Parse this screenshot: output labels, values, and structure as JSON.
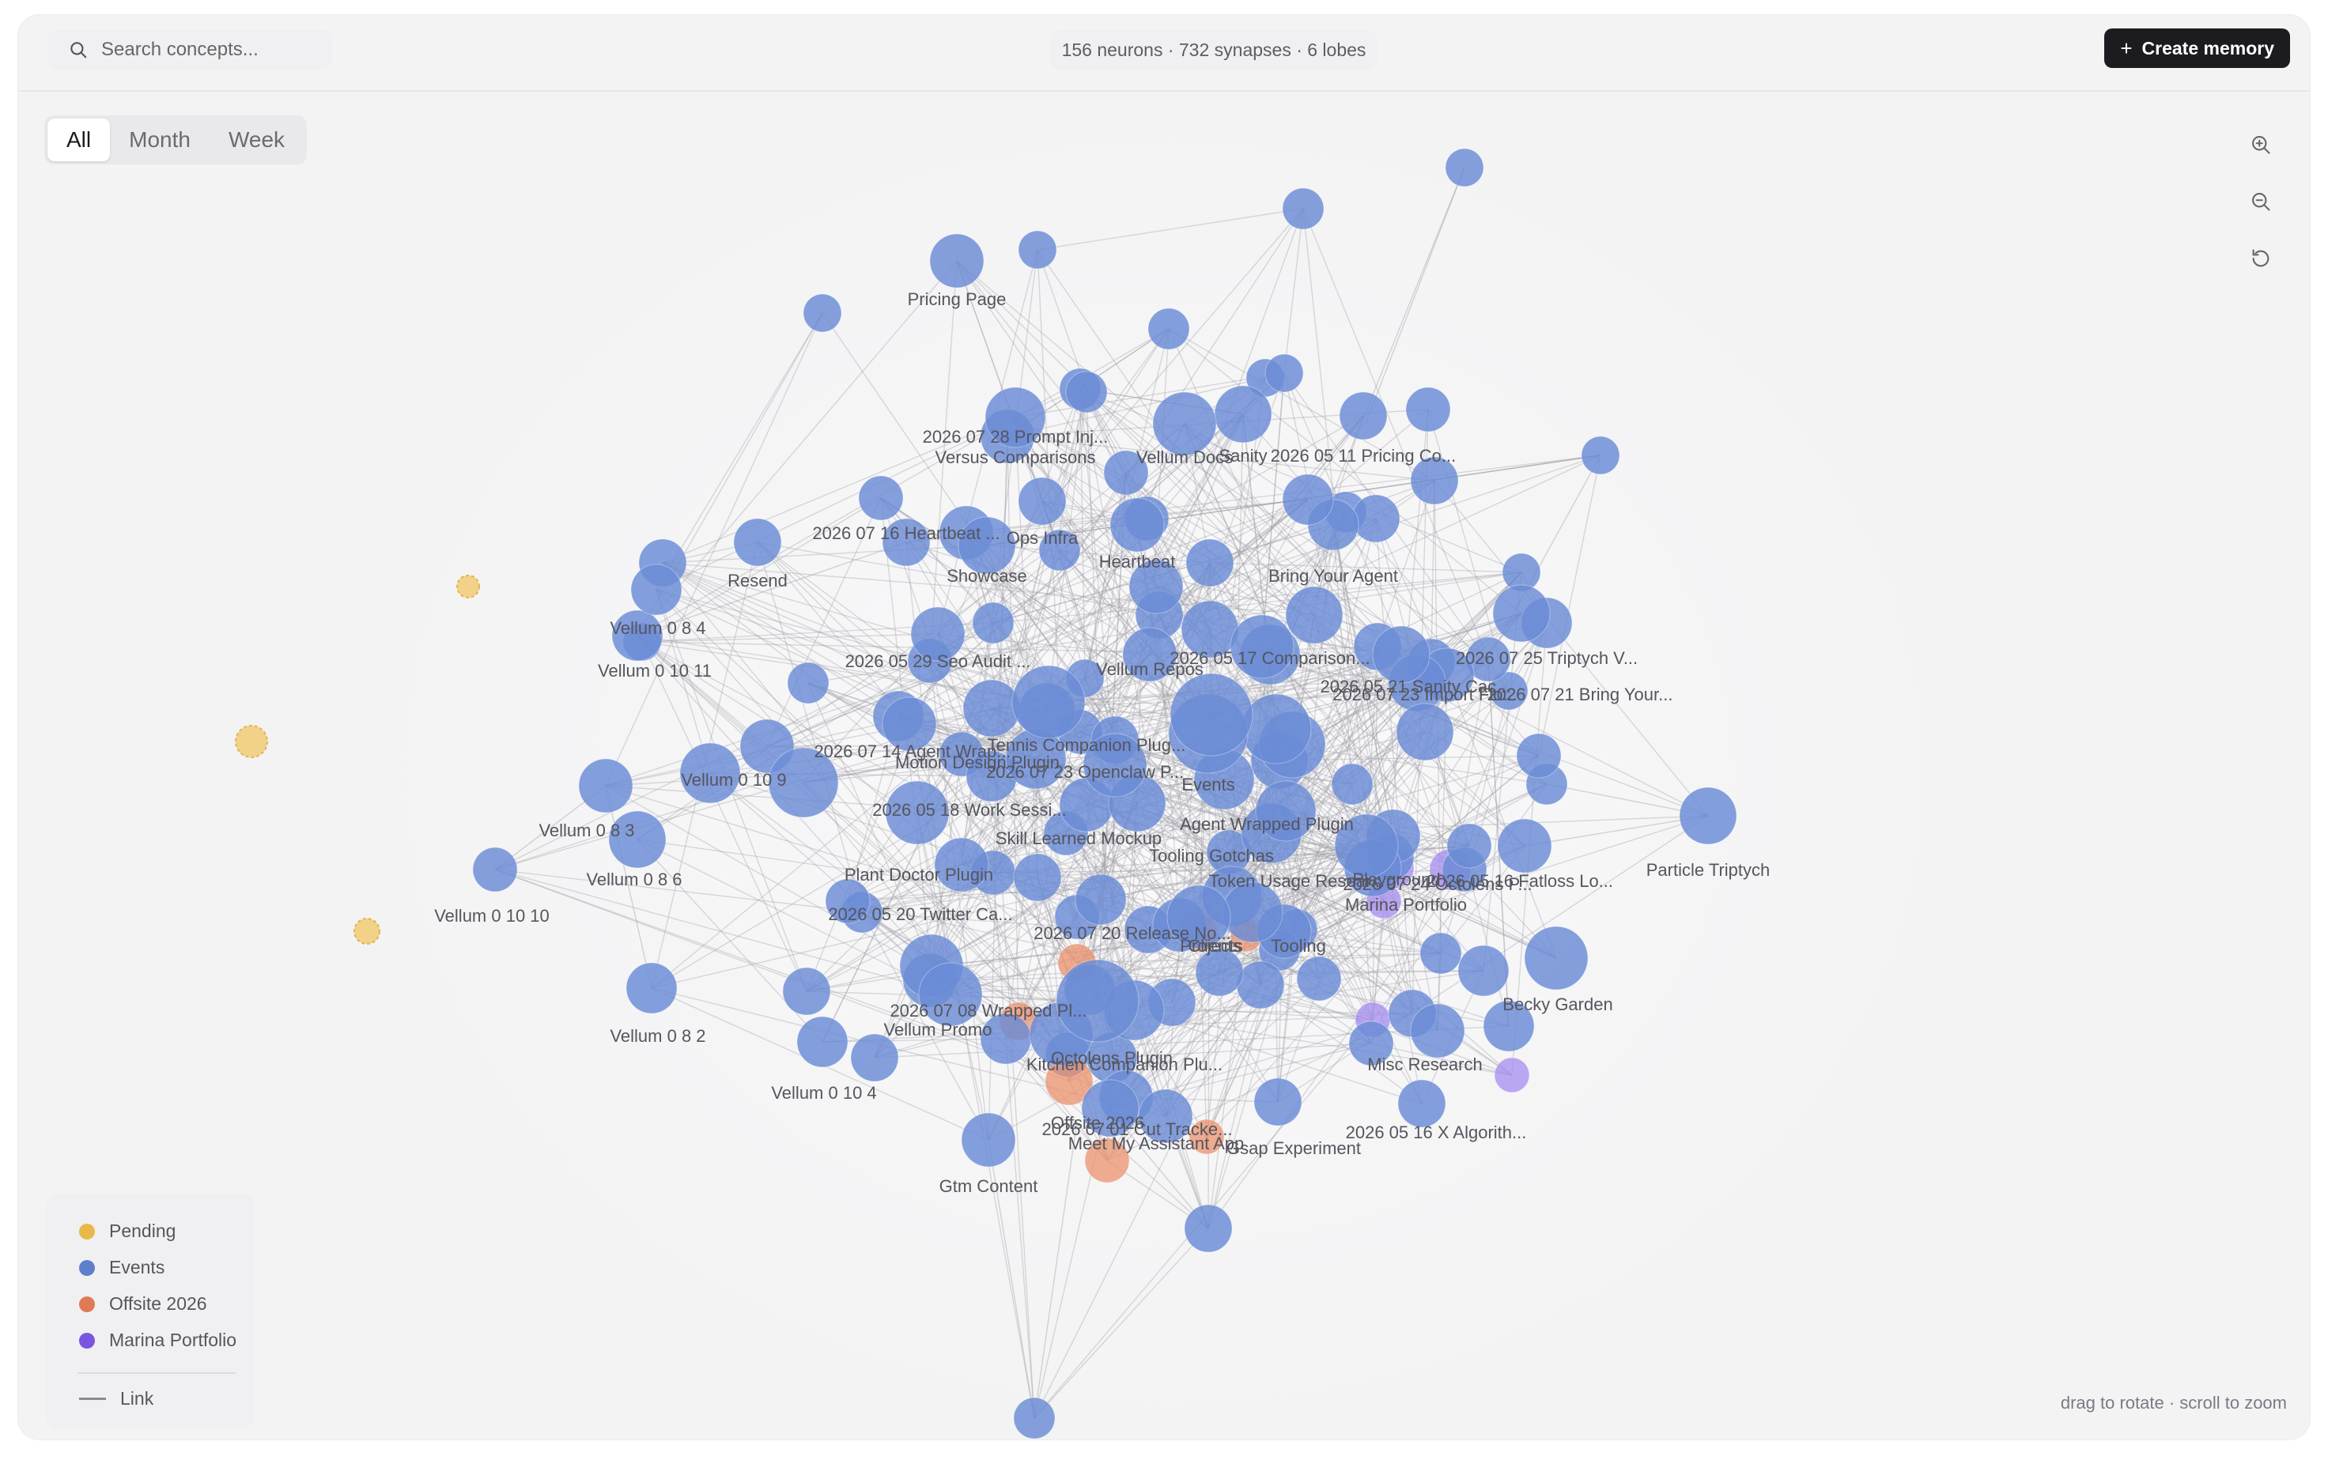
{
  "search": {
    "placeholder": "Search concepts..."
  },
  "stats": {
    "text": "156 neurons · 732 synapses · 6 lobes"
  },
  "create_button": {
    "label": "Create memory",
    "icon": "plus-icon"
  },
  "range_tabs": [
    {
      "label": "All",
      "active": true
    },
    {
      "label": "Month",
      "active": false
    },
    {
      "label": "Week",
      "active": false
    }
  ],
  "controls": {
    "zoom_in": "zoom-in-icon",
    "zoom_out": "zoom-out-icon",
    "reset": "reset-icon"
  },
  "legend": {
    "items": [
      {
        "label": "Pending",
        "color": "#e8b84a"
      },
      {
        "label": "Events",
        "color": "#5d7fcc"
      },
      {
        "label": "Offsite 2026",
        "color": "#e07a55"
      },
      {
        "label": "Marina Portfolio",
        "color": "#7a55e0"
      }
    ],
    "link_label": "Link"
  },
  "hint": "drag to rotate · scroll to zoom",
  "colors": {
    "events": "#6a8bd6",
    "offsite": "#eb916c",
    "marina": "#a58cef",
    "pending": "#f1d288",
    "pending_stroke": "#e2b54f",
    "link": "#9a9aa2"
  },
  "graph": {
    "nodes": [
      {
        "label": "Pricing Page",
        "c": "events"
      },
      {
        "label": "2026 07 28 Prompt Inj...",
        "c": "events"
      },
      {
        "label": "Versus Comparisons",
        "c": "events"
      },
      {
        "label": "Vellum Docs",
        "c": "events"
      },
      {
        "label": "Sanity",
        "c": "events"
      },
      {
        "label": "2026 05 11 Pricing Co...",
        "c": "events"
      },
      {
        "label": "2026 07 16 Heartbeat ...",
        "c": "events"
      },
      {
        "label": "Ops Infra",
        "c": "events"
      },
      {
        "label": "Heartbeat",
        "c": "events"
      },
      {
        "label": "Showcase",
        "c": "events"
      },
      {
        "label": "Resend",
        "c": "events"
      },
      {
        "label": "Bring Your Agent",
        "c": "events"
      },
      {
        "label": "Vellum 0 8 4",
        "c": "events"
      },
      {
        "label": "Vellum 0 10 11",
        "c": "events"
      },
      {
        "label": "2026 05 29 Seo Audit ...",
        "c": "events"
      },
      {
        "label": "Vellum Repos",
        "c": "events"
      },
      {
        "label": "2026 05 17 Comparison...",
        "c": "events"
      },
      {
        "label": "2026 07 25 Triptych V...",
        "c": "events"
      },
      {
        "label": "2026 05 21 Sanity Cac...",
        "c": "events"
      },
      {
        "label": "2026 07 23 Import Flo...",
        "c": "events"
      },
      {
        "label": "2026 07 21 Bring Your...",
        "c": "events"
      },
      {
        "label": "2026 07 14 Agent Wrap...",
        "c": "events"
      },
      {
        "label": "Tennis Companion Plug...",
        "c": "events"
      },
      {
        "label": "Motion Design Plugin",
        "c": "events"
      },
      {
        "label": "2026 07 23 Openclaw P...",
        "c": "events"
      },
      {
        "label": "Events",
        "c": "events"
      },
      {
        "label": "Vellum 0 10 9",
        "c": "events"
      },
      {
        "label": "Vellum 0 8 3",
        "c": "events"
      },
      {
        "label": "2026 05 18 Work Sessi...",
        "c": "events"
      },
      {
        "label": "Agent Wrapped Plugin",
        "c": "events"
      },
      {
        "label": "Skill Learned Mockup",
        "c": "events"
      },
      {
        "label": "Tooling Gotchas",
        "c": "events"
      },
      {
        "label": "Particle Triptych",
        "c": "events"
      },
      {
        "label": "Vellum 0 8 6",
        "c": "events"
      },
      {
        "label": "Plant Doctor Plugin",
        "c": "events"
      },
      {
        "label": "Token Usage Resear...",
        "c": "events"
      },
      {
        "label": "Playground",
        "c": "events"
      },
      {
        "label": "2026 07 24 Octolens P...",
        "c": "events"
      },
      {
        "label": "2026 05 16 Fatloss Lo...",
        "c": "events"
      },
      {
        "label": "Marina Portfolio",
        "c": "marina"
      },
      {
        "label": "Vellum 0 10 10",
        "c": "events"
      },
      {
        "label": "2026 05 20 Twitter Ca...",
        "c": "events"
      },
      {
        "label": "2026 07 20 Release No...",
        "c": "events"
      },
      {
        "label": "Projects",
        "c": "events"
      },
      {
        "label": "Clients",
        "c": "offsite"
      },
      {
        "label": "Tooling",
        "c": "events"
      },
      {
        "label": "Becky Garden",
        "c": "events"
      },
      {
        "label": "2026 07 08 Wrapped Pl...",
        "c": "events"
      },
      {
        "label": "Vellum Promo",
        "c": "events"
      },
      {
        "label": "Vellum 0 8 2",
        "c": "events"
      },
      {
        "label": "Octolens Plugin",
        "c": "events"
      },
      {
        "label": "Kitchen Companion Plu...",
        "c": "events"
      },
      {
        "label": "Misc Research",
        "c": "events"
      },
      {
        "label": "Vellum 0 10 4",
        "c": "events"
      },
      {
        "label": "Offsite 2026",
        "c": "offsite"
      },
      {
        "label": "2026 07 01 Cut Tracke...",
        "c": "events"
      },
      {
        "label": "Meet My Assistant App",
        "c": "events"
      },
      {
        "label": "Gsap Experiment",
        "c": "events"
      },
      {
        "label": "2026 05 16 X Algorith...",
        "c": "events"
      },
      {
        "label": "Gtm Content",
        "c": "events"
      }
    ]
  }
}
